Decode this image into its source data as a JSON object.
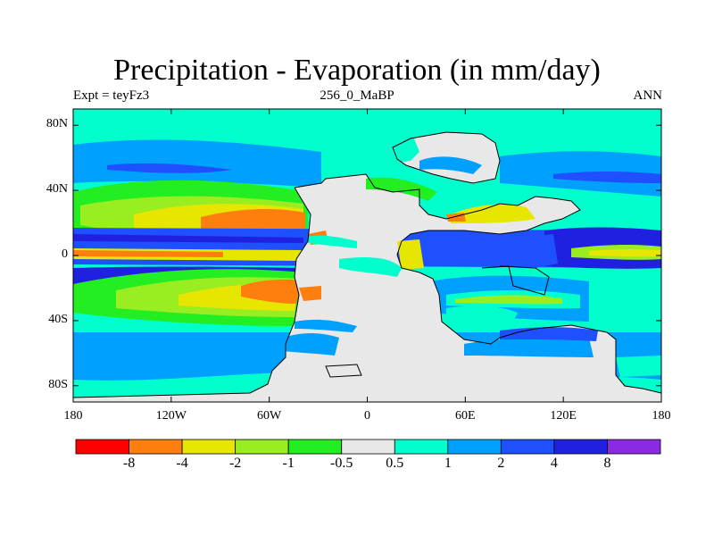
{
  "title": "Precipitation - Evaporation (in mm/day)",
  "subtitle_left": "Expt = teyFz3",
  "subtitle_center": "256_0_MaBP",
  "subtitle_right": "ANN",
  "axes": {
    "y_ticks": [
      "80N",
      "40N",
      "0",
      "40S",
      "80S"
    ],
    "y_values": [
      80,
      40,
      0,
      -40,
      -80
    ],
    "x_ticks": [
      "180",
      "120W",
      "60W",
      "0",
      "60E",
      "120E",
      "180"
    ],
    "x_values": [
      -180,
      -120,
      -60,
      0,
      60,
      120,
      180
    ],
    "lon_range": [
      -180,
      180
    ],
    "lat_range": [
      -90,
      90
    ]
  },
  "colorbar": {
    "labels": [
      "-8",
      "-4",
      "-2",
      "-1",
      "-0.5",
      "0.5",
      "1",
      "2",
      "4",
      "8"
    ],
    "colors": [
      "#ff0000",
      "#ff7f0e",
      "#e6e600",
      "#99ee22",
      "#22ee22",
      "#e8e8e8",
      "#00ffcc",
      "#00a0ff",
      "#1e50ff",
      "#2020e0",
      "#8a2be2"
    ]
  },
  "palette": {
    "land": "#e8e8e8",
    "ocean_low": "#00ffcc",
    "ocean_mid": "#00a0ff",
    "ocean_high": "#1e50ff",
    "ocean_max": "#2020e0",
    "dry_1": "#22ee22",
    "dry_2": "#99ee22",
    "dry_3": "#e6e600",
    "dry_4": "#ff7f0e",
    "coast": "#000000"
  }
}
